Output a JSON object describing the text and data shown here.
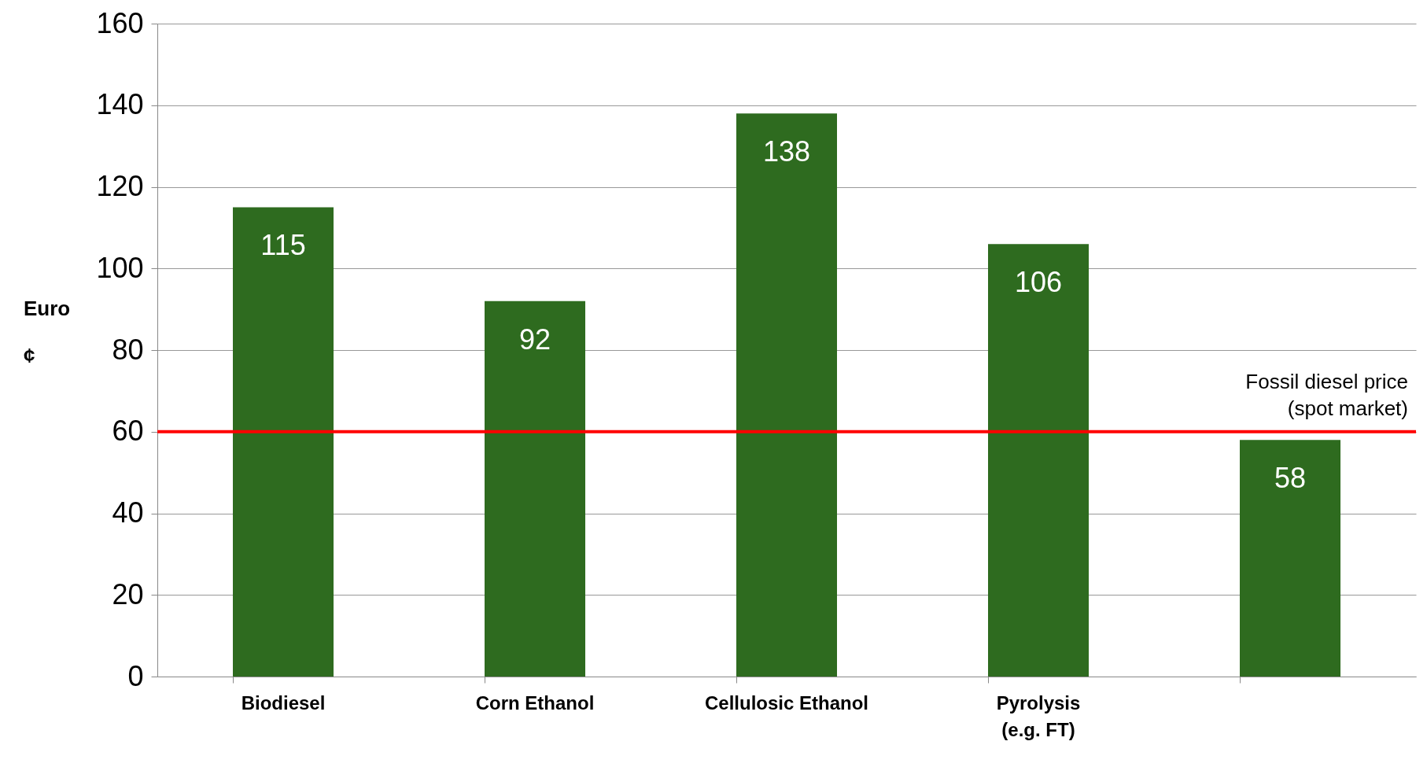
{
  "chart_data": {
    "type": "bar",
    "ylabel": "Euro ¢",
    "categories": [
      "Biodiesel",
      "Corn Ethanol",
      "Cellulosic Ethanol",
      "Pyrolysis\n(e.g. FT)",
      null
    ],
    "values": [
      115,
      92,
      138,
      106,
      58
    ],
    "color": "#2e6b1f",
    "data_labels": true,
    "ylim": [
      0,
      160
    ],
    "yticks": [
      0,
      20,
      40,
      60,
      80,
      100,
      120,
      140,
      160
    ],
    "grid": "y",
    "ref_lines": [
      {
        "axis": "y",
        "value": 60,
        "label": "Fossil diesel price\n(spot market)",
        "color": "#ff0000"
      }
    ]
  }
}
